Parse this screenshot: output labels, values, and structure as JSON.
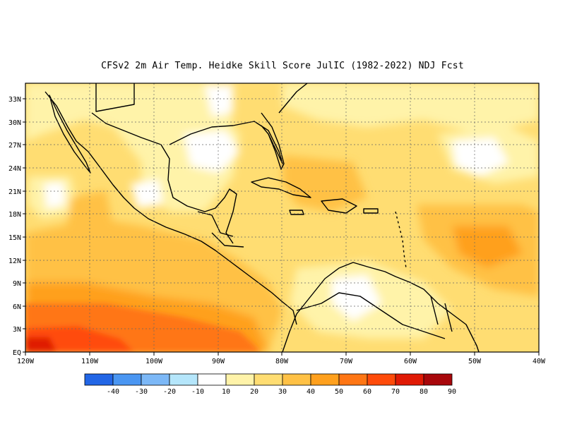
{
  "title": "CFSv2  2m Air Temp. Heidke Skill Score JulIC (1982-2022) NDJ Fcst",
  "map": {
    "lat_ticks": [
      "33N",
      "30N",
      "27N",
      "24N",
      "21N",
      "18N",
      "15N",
      "12N",
      "9N",
      "6N",
      "3N",
      "EQ"
    ],
    "lon_ticks": [
      "120W",
      "110W",
      "100W",
      "90W",
      "80W",
      "70W",
      "60W",
      "50W",
      "40W"
    ],
    "lat_range": [
      0,
      35
    ],
    "lon_range": [
      -120,
      -40
    ]
  },
  "colorbar": {
    "labels": [
      "-40",
      "-30",
      "-20",
      "-10",
      "10",
      "20",
      "30",
      "40",
      "50",
      "60",
      "70",
      "80",
      "90"
    ],
    "colors": [
      "#2266e6",
      "#4a96f2",
      "#7cb8f7",
      "#b5e6fb",
      "#ffffff",
      "#fff3a9",
      "#ffdd72",
      "#ffc145",
      "#ffa01d",
      "#ff7614",
      "#ff4b0a",
      "#e01a05",
      "#a8070b"
    ]
  }
}
